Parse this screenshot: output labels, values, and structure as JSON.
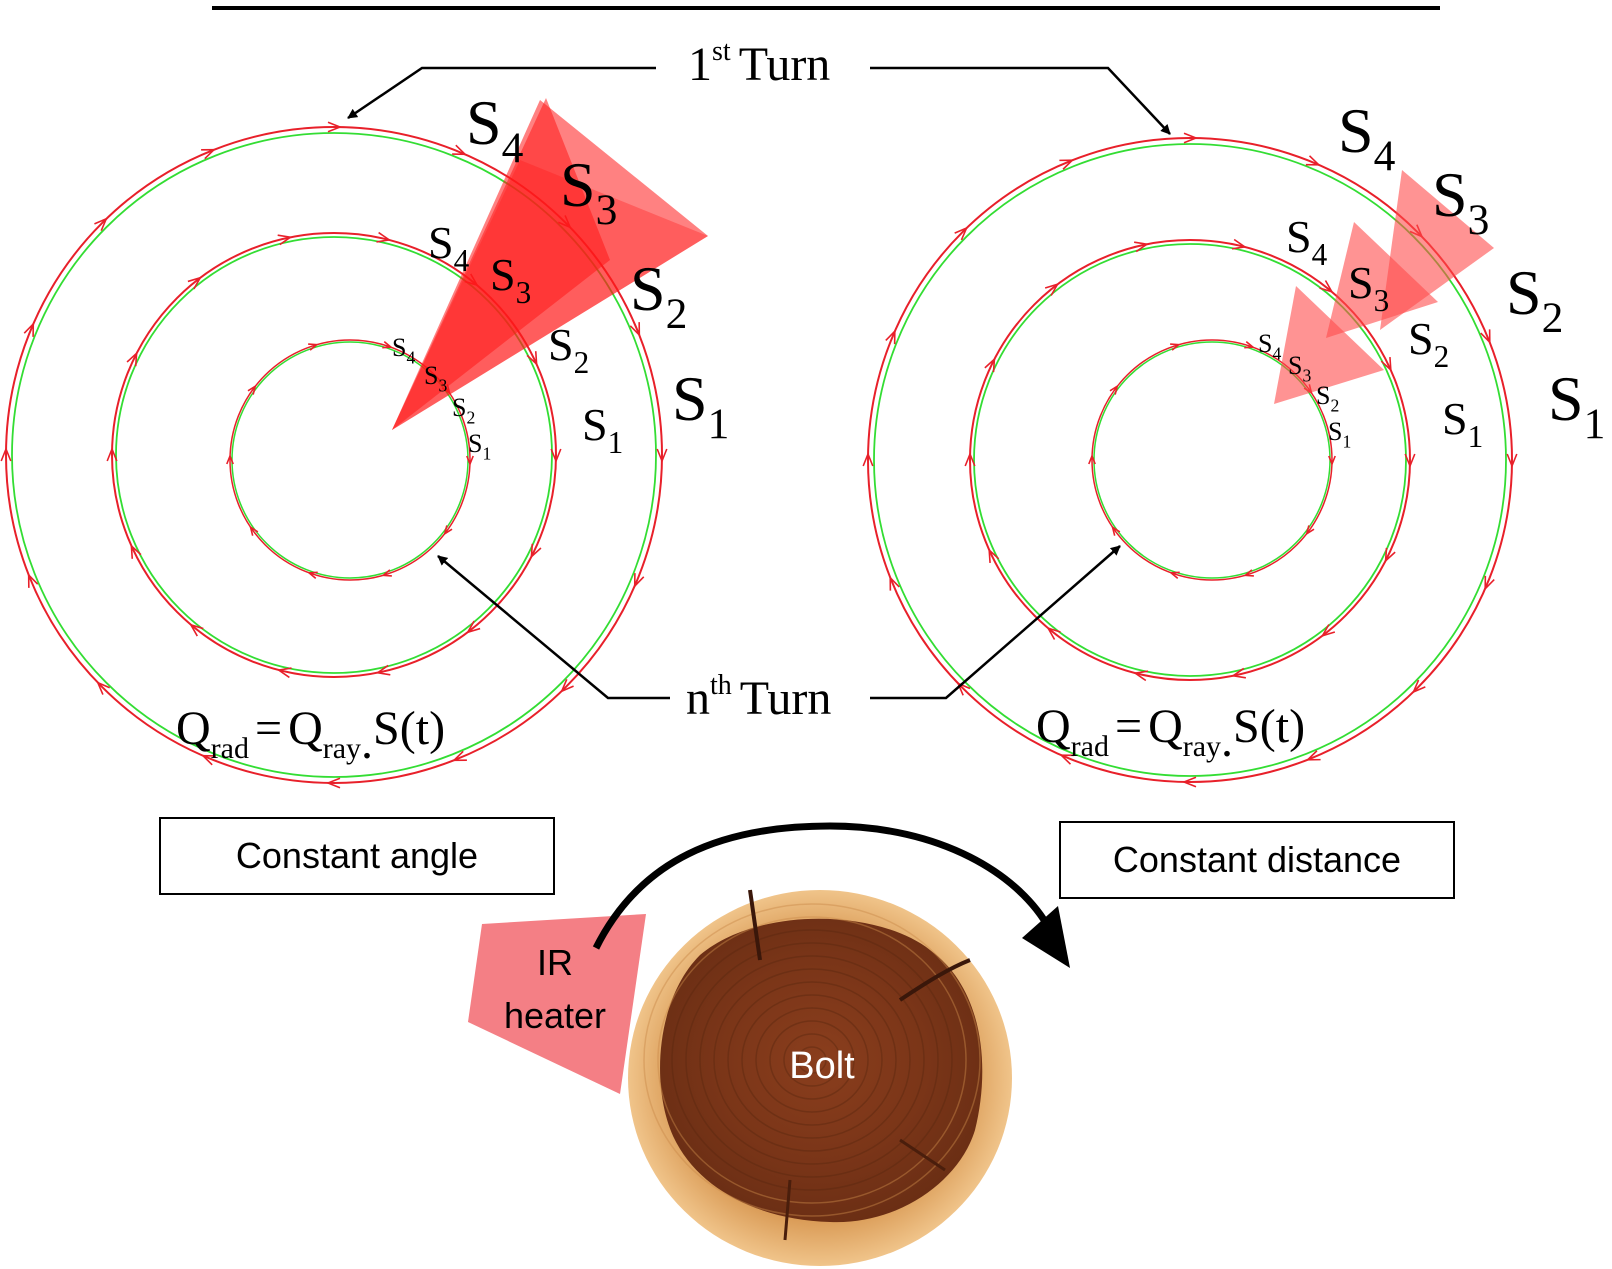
{
  "turns": {
    "first": {
      "main": "1",
      "sup": "st",
      "word": "Turn"
    },
    "nth": {
      "main": "n",
      "sup": "th",
      "word": "Turn"
    }
  },
  "segment_labels": [
    "S",
    "S",
    "S",
    "S"
  ],
  "segment_indices": [
    "1",
    "2",
    "3",
    "4"
  ],
  "equation": {
    "q": "Q",
    "rad": "rad",
    "equals": "=",
    "ray": "ray",
    "dot": ".",
    "term": "S(t)"
  },
  "boxes": {
    "left": "Constant angle",
    "right": "Constant distance"
  },
  "heater": {
    "line1": "IR",
    "line2": "heater"
  },
  "bolt": "Bolt",
  "colors": {
    "path_red": "#e8202a",
    "path_green": "#33dd33",
    "cone_red": "#ff1a1a",
    "heater_pink": "#f47f85",
    "wood_dark": "#7a3b1c",
    "wood_light": "#e6b170"
  }
}
